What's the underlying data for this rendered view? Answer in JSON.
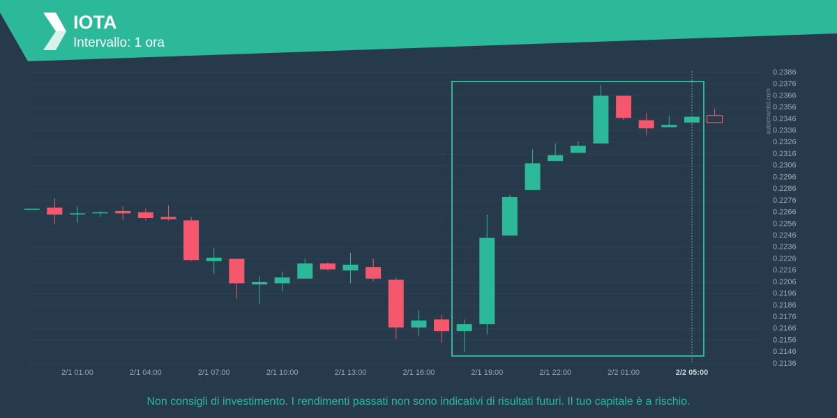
{
  "chart_data": {
    "type": "candlestick",
    "title": "IOTA",
    "subtitle": "Intervallo: 1 ora",
    "watermark": "autochartist.com",
    "footer": "Non consigli di investimento. I rendimenti passati non sono indicativi di risultati futuri. Il tuo capitale è a rischio.",
    "categories": [
      null,
      null,
      "2/1 01:00",
      null,
      null,
      "2/1 04:00",
      null,
      null,
      "2/1 07:00",
      null,
      null,
      "2/1 10:00",
      null,
      null,
      "2/1 13:00",
      null,
      null,
      "2/1 16:00",
      null,
      null,
      "2/1 19:00",
      null,
      null,
      "2/1 22:00",
      null,
      null,
      "2/2 01:00",
      null,
      null,
      "2/2 05:00",
      null
    ],
    "open": [
      0.2269,
      0.227,
      0.2265,
      0.2265,
      0.2267,
      0.2266,
      0.2262,
      0.2259,
      0.2224,
      0.2226,
      0.2204,
      0.2205,
      0.2209,
      0.2222,
      0.2216,
      0.2219,
      0.2208,
      0.2167,
      0.2174,
      0.2164,
      0.217,
      0.2246,
      0.2285,
      0.231,
      0.2317,
      0.2325,
      0.2366,
      0.2345,
      0.2339,
      0.2343,
      0.2349
    ],
    "high": [
      0.2269,
      0.2278,
      0.2271,
      0.2267,
      0.2271,
      0.2269,
      0.2272,
      0.2262,
      0.2235,
      0.2226,
      0.2211,
      0.2215,
      0.2226,
      0.2223,
      0.2231,
      0.2226,
      0.221,
      0.2182,
      0.2178,
      0.2174,
      0.2264,
      0.2281,
      0.232,
      0.2325,
      0.2327,
      0.2375,
      0.2366,
      0.2351,
      0.2349,
      0.2348,
      0.2355
    ],
    "low": [
      0.2269,
      0.2256,
      0.2257,
      0.2262,
      0.2259,
      0.2259,
      0.2259,
      0.2224,
      0.2213,
      0.2192,
      0.2187,
      0.2198,
      0.2209,
      0.2216,
      0.2205,
      0.2207,
      0.2157,
      0.216,
      0.2154,
      0.2146,
      0.2161,
      0.2246,
      0.2285,
      0.231,
      0.2317,
      0.2325,
      0.2345,
      0.2332,
      0.2339,
      0.2342,
      0.2343
    ],
    "close": [
      0.2269,
      0.2264,
      0.2265,
      0.2266,
      0.2265,
      0.2261,
      0.226,
      0.2225,
      0.2227,
      0.2205,
      0.2206,
      0.221,
      0.2222,
      0.2217,
      0.2221,
      0.2209,
      0.2167,
      0.2173,
      0.2164,
      0.217,
      0.2244,
      0.2279,
      0.2308,
      0.2315,
      0.2323,
      0.2366,
      0.2347,
      0.2338,
      0.2341,
      0.2348,
      0.2343
    ],
    "up_color": "#2bb99a",
    "down_color": "#f5576c",
    "ylim": [
      0.2136,
      0.2386
    ],
    "yticks": [
      0.2136,
      0.2146,
      0.2156,
      0.2166,
      0.2176,
      0.2186,
      0.2196,
      0.2206,
      0.2216,
      0.2226,
      0.2236,
      0.2246,
      0.2256,
      0.2266,
      0.2276,
      0.2286,
      0.2296,
      0.2306,
      0.2316,
      0.2326,
      0.2336,
      0.2346,
      0.2356,
      0.2366,
      0.2376,
      0.2386
    ],
    "grid": true
  }
}
